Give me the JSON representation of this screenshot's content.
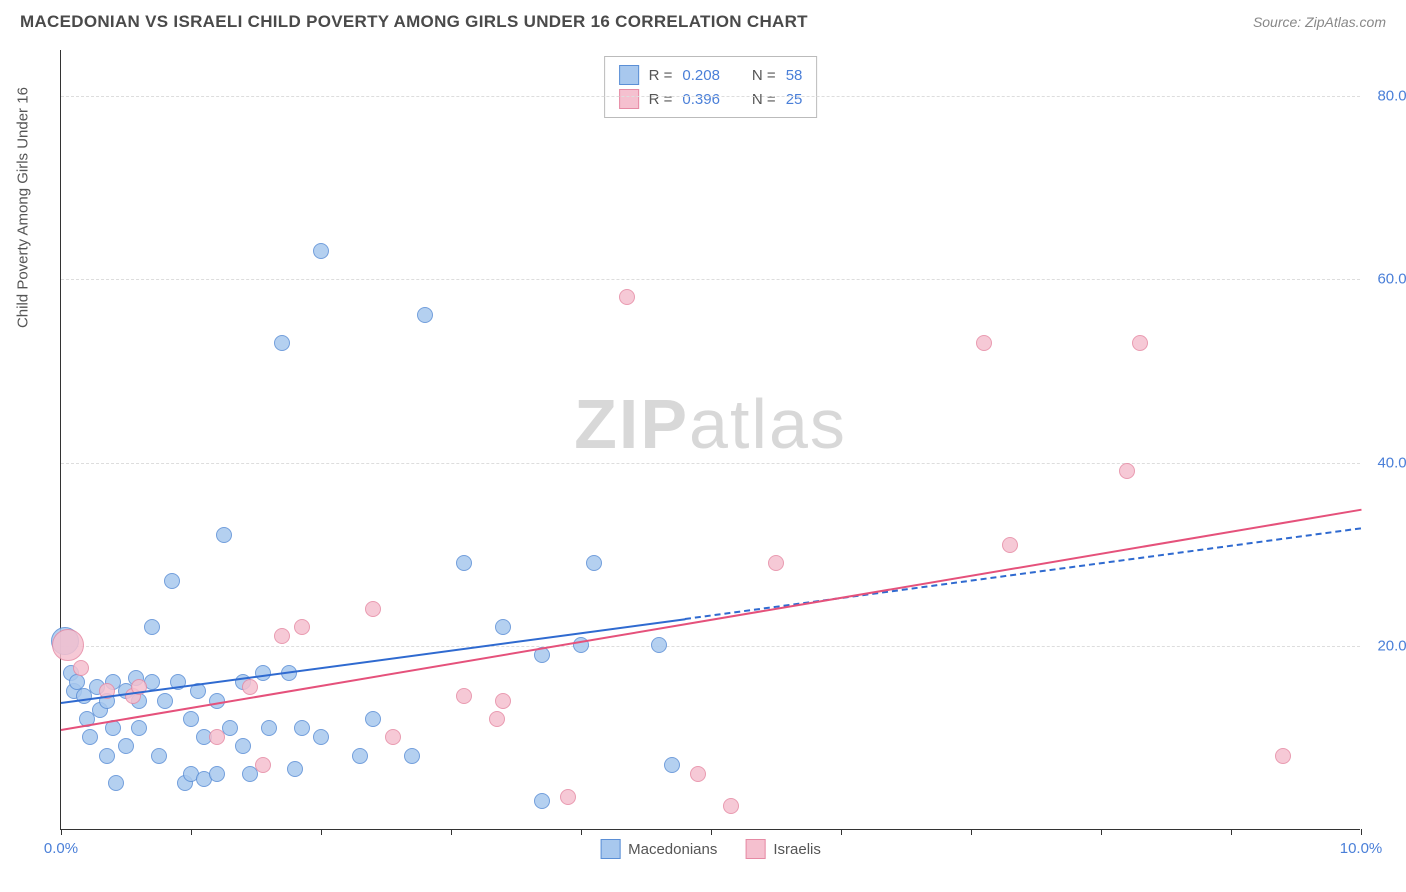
{
  "header": {
    "title": "MACEDONIAN VS ISRAELI CHILD POVERTY AMONG GIRLS UNDER 16 CORRELATION CHART",
    "source_prefix": "Source: ",
    "source_name": "ZipAtlas.com"
  },
  "watermark": {
    "bold": "ZIP",
    "rest": "atlas"
  },
  "chart": {
    "type": "scatter",
    "background_color": "#ffffff",
    "grid_color": "#dddddd",
    "axis_color": "#333333",
    "y_axis_title": "Child Poverty Among Girls Under 16",
    "xlim": [
      0,
      10
    ],
    "ylim": [
      0,
      85
    ],
    "x_ticks": [
      0,
      1,
      2,
      3,
      4,
      5,
      6,
      7,
      8,
      9,
      10
    ],
    "x_tick_labels": {
      "0": "0.0%",
      "10": "10.0%"
    },
    "y_ticks": [
      20,
      40,
      60,
      80
    ],
    "y_tick_labels": {
      "20": "20.0%",
      "40": "40.0%",
      "60": "60.0%",
      "80": "80.0%"
    },
    "tick_label_color": "#4a7fd8",
    "axis_title_color": "#555555",
    "label_fontsize": 15,
    "series": [
      {
        "name": "Macedonians",
        "fill_color": "#a8c8ee",
        "stroke_color": "#5b8fd6",
        "marker_radius_default": 8,
        "trend": {
          "x1": 0,
          "y1": 14,
          "x2": 10,
          "y2": 33,
          "color": "#2f6ad0",
          "width": 2,
          "dash_after_x": 4.8
        },
        "R": "0.208",
        "N": "58",
        "points": [
          {
            "x": 0.03,
            "y": 20.5,
            "r": 14
          },
          {
            "x": 0.08,
            "y": 17,
            "r": 8
          },
          {
            "x": 0.1,
            "y": 15,
            "r": 8
          },
          {
            "x": 0.12,
            "y": 16,
            "r": 8
          },
          {
            "x": 0.18,
            "y": 14.5,
            "r": 8
          },
          {
            "x": 0.2,
            "y": 12,
            "r": 8
          },
          {
            "x": 0.22,
            "y": 10,
            "r": 8
          },
          {
            "x": 0.28,
            "y": 15.5,
            "r": 8
          },
          {
            "x": 0.3,
            "y": 13,
            "r": 8
          },
          {
            "x": 0.35,
            "y": 14,
            "r": 8
          },
          {
            "x": 0.35,
            "y": 8,
            "r": 8
          },
          {
            "x": 0.4,
            "y": 16,
            "r": 8
          },
          {
            "x": 0.4,
            "y": 11,
            "r": 8
          },
          {
            "x": 0.42,
            "y": 5,
            "r": 8
          },
          {
            "x": 0.5,
            "y": 15,
            "r": 8
          },
          {
            "x": 0.5,
            "y": 9,
            "r": 8
          },
          {
            "x": 0.58,
            "y": 16.5,
            "r": 8
          },
          {
            "x": 0.6,
            "y": 14,
            "r": 8
          },
          {
            "x": 0.6,
            "y": 11,
            "r": 8
          },
          {
            "x": 0.7,
            "y": 22,
            "r": 8
          },
          {
            "x": 0.7,
            "y": 16,
            "r": 8
          },
          {
            "x": 0.75,
            "y": 8,
            "r": 8
          },
          {
            "x": 0.8,
            "y": 14,
            "r": 8
          },
          {
            "x": 0.85,
            "y": 27,
            "r": 8
          },
          {
            "x": 0.9,
            "y": 16,
            "r": 8
          },
          {
            "x": 0.95,
            "y": 5,
            "r": 8
          },
          {
            "x": 1.0,
            "y": 12,
            "r": 8
          },
          {
            "x": 1.0,
            "y": 6,
            "r": 8
          },
          {
            "x": 1.05,
            "y": 15,
            "r": 8
          },
          {
            "x": 1.1,
            "y": 10,
            "r": 8
          },
          {
            "x": 1.1,
            "y": 5.5,
            "r": 8
          },
          {
            "x": 1.2,
            "y": 14,
            "r": 8
          },
          {
            "x": 1.2,
            "y": 6,
            "r": 8
          },
          {
            "x": 1.25,
            "y": 32,
            "r": 8
          },
          {
            "x": 1.3,
            "y": 11,
            "r": 8
          },
          {
            "x": 1.4,
            "y": 16,
            "r": 8
          },
          {
            "x": 1.4,
            "y": 9,
            "r": 8
          },
          {
            "x": 1.45,
            "y": 6,
            "r": 8
          },
          {
            "x": 1.55,
            "y": 17,
            "r": 8
          },
          {
            "x": 1.6,
            "y": 11,
            "r": 8
          },
          {
            "x": 1.7,
            "y": 53,
            "r": 8
          },
          {
            "x": 1.75,
            "y": 17,
            "r": 8
          },
          {
            "x": 1.8,
            "y": 6.5,
            "r": 8
          },
          {
            "x": 1.85,
            "y": 11,
            "r": 8
          },
          {
            "x": 2.0,
            "y": 63,
            "r": 8
          },
          {
            "x": 2.0,
            "y": 10,
            "r": 8
          },
          {
            "x": 2.3,
            "y": 8,
            "r": 8
          },
          {
            "x": 2.4,
            "y": 12,
            "r": 8
          },
          {
            "x": 2.7,
            "y": 8,
            "r": 8
          },
          {
            "x": 2.8,
            "y": 56,
            "r": 8
          },
          {
            "x": 3.1,
            "y": 29,
            "r": 8
          },
          {
            "x": 3.4,
            "y": 22,
            "r": 8
          },
          {
            "x": 3.7,
            "y": 19,
            "r": 8
          },
          {
            "x": 3.7,
            "y": 3,
            "r": 8
          },
          {
            "x": 4.0,
            "y": 20,
            "r": 8
          },
          {
            "x": 4.1,
            "y": 29,
            "r": 8
          },
          {
            "x": 4.6,
            "y": 20,
            "r": 8
          },
          {
            "x": 4.7,
            "y": 7,
            "r": 8
          }
        ]
      },
      {
        "name": "Israelis",
        "fill_color": "#f5c0cf",
        "stroke_color": "#e68aa4",
        "marker_radius_default": 8,
        "trend": {
          "x1": 0,
          "y1": 11,
          "x2": 10,
          "y2": 35,
          "color": "#e5517b",
          "width": 2,
          "dash_after_x": null
        },
        "R": "0.396",
        "N": "25",
        "points": [
          {
            "x": 0.05,
            "y": 20,
            "r": 16
          },
          {
            "x": 0.15,
            "y": 17.5,
            "r": 8
          },
          {
            "x": 0.35,
            "y": 15,
            "r": 8
          },
          {
            "x": 0.55,
            "y": 14.5,
            "r": 8
          },
          {
            "x": 0.6,
            "y": 15.5,
            "r": 8
          },
          {
            "x": 1.2,
            "y": 10,
            "r": 8
          },
          {
            "x": 1.45,
            "y": 15.5,
            "r": 8
          },
          {
            "x": 1.55,
            "y": 7,
            "r": 8
          },
          {
            "x": 1.7,
            "y": 21,
            "r": 8
          },
          {
            "x": 1.85,
            "y": 22,
            "r": 8
          },
          {
            "x": 2.4,
            "y": 24,
            "r": 8
          },
          {
            "x": 2.55,
            "y": 10,
            "r": 8
          },
          {
            "x": 3.1,
            "y": 14.5,
            "r": 8
          },
          {
            "x": 3.35,
            "y": 12,
            "r": 8
          },
          {
            "x": 3.4,
            "y": 14,
            "r": 8
          },
          {
            "x": 3.9,
            "y": 3.5,
            "r": 8
          },
          {
            "x": 4.35,
            "y": 58,
            "r": 8
          },
          {
            "x": 4.9,
            "y": 6,
            "r": 8
          },
          {
            "x": 5.15,
            "y": 2.5,
            "r": 8
          },
          {
            "x": 5.5,
            "y": 29,
            "r": 8
          },
          {
            "x": 7.1,
            "y": 53,
            "r": 8
          },
          {
            "x": 7.3,
            "y": 31,
            "r": 8
          },
          {
            "x": 8.2,
            "y": 39,
            "r": 8
          },
          {
            "x": 8.3,
            "y": 53,
            "r": 8
          },
          {
            "x": 9.4,
            "y": 8,
            "r": 8
          }
        ]
      }
    ],
    "legend_top": {
      "R_label": "R =",
      "N_label": "N ="
    },
    "legend_bottom_labels": [
      "Macedonians",
      "Israelis"
    ]
  }
}
